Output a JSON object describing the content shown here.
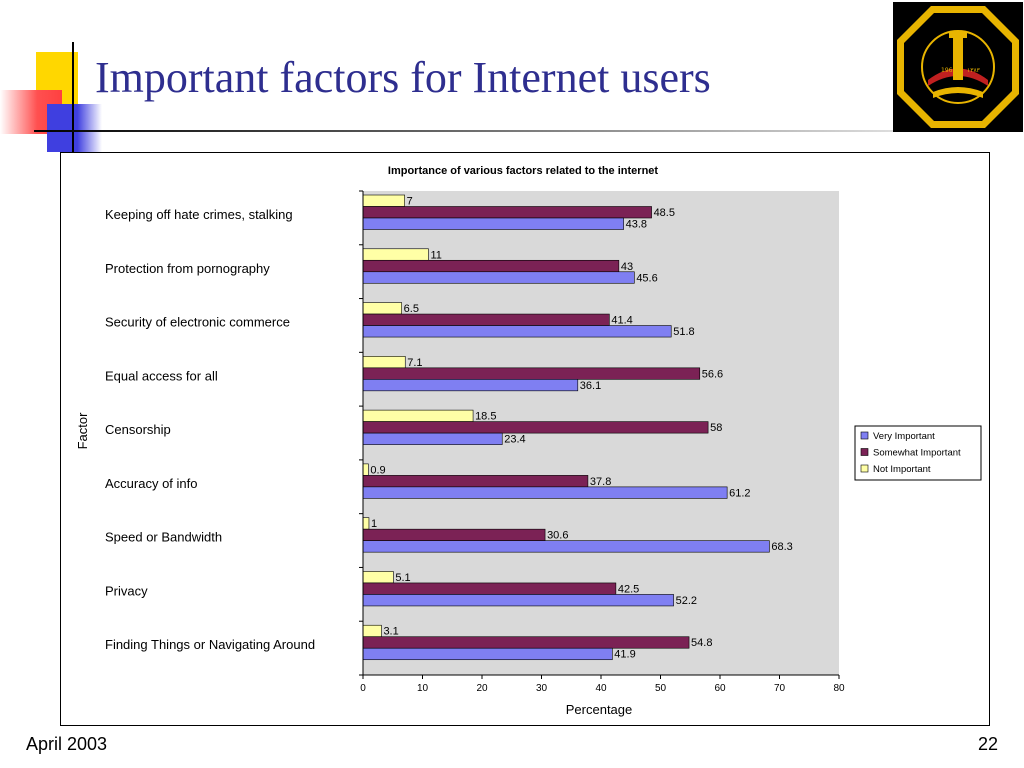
{
  "slide": {
    "title": "Important factors for Internet users",
    "footer_date": "April 2003",
    "page_number": "22"
  },
  "logo": {
    "text_top": "جامعة الملك فهد للبترول والمعادن",
    "text_bottom": "KING FAHD UNIVERSITY OF PETROLEUM & MINERALS",
    "year_left": "1963",
    "year_right": "١٣٨٣"
  },
  "colors": {
    "very_important": "#7f7ff2",
    "somewhat_important": "#7b2255",
    "not_important": "#ffffa6",
    "plot_bg": "#d9d9d9",
    "title_text": "#2e2e8f"
  },
  "chart_data": {
    "type": "bar",
    "orientation": "horizontal",
    "title": "Importance of various factors related to the internet",
    "xlabel": "Percentage",
    "ylabel": "Factor",
    "xlim": [
      0,
      80
    ],
    "xticks": [
      0,
      10,
      20,
      30,
      40,
      50,
      60,
      70,
      80
    ],
    "grid": false,
    "legend_position": "right",
    "categories": [
      "Keeping off hate crimes, stalking",
      "Protection from pornography",
      "Security of electronic commerce",
      "Equal access for all",
      "Censorship",
      "Accuracy of info",
      "Speed or Bandwidth",
      "Privacy",
      "Finding Things or Navigating Around"
    ],
    "series": [
      {
        "name": "Not Important",
        "color": "#ffffa6",
        "values": [
          7,
          11,
          6.5,
          7.1,
          18.5,
          0.9,
          1,
          5.1,
          3.1
        ]
      },
      {
        "name": "Somewhat Important",
        "color": "#7b2255",
        "values": [
          48.5,
          43,
          41.4,
          56.6,
          58,
          37.8,
          30.6,
          42.5,
          54.8
        ]
      },
      {
        "name": "Very Important",
        "color": "#7f7ff2",
        "values": [
          43.8,
          45.6,
          51.8,
          36.1,
          23.4,
          61.2,
          68.3,
          52.2,
          41.9
        ]
      }
    ],
    "legend_order": [
      "Very Important",
      "Somewhat Important",
      "Not Important"
    ]
  }
}
